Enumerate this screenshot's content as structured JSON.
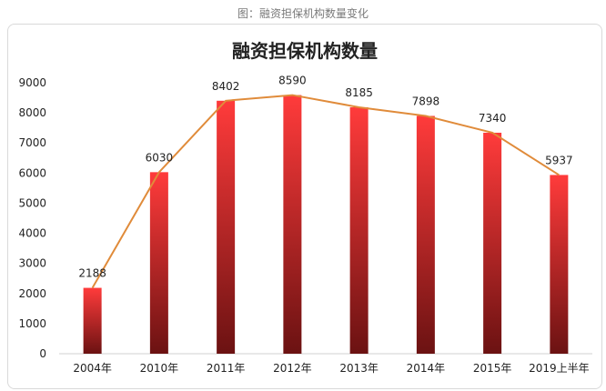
{
  "caption": "图：融资担保机构数量变化",
  "chart_data": {
    "type": "bar",
    "title": "融资担保机构数量",
    "xlabel": "",
    "ylabel": "",
    "categories": [
      "2004年",
      "2010年",
      "2011年",
      "2012年",
      "2013年",
      "2014年",
      "2015年",
      "2019上半年"
    ],
    "series": [
      {
        "values": [
          2188,
          6030,
          8402,
          8590,
          8185,
          7898,
          7340,
          5937
        ]
      }
    ],
    "overlay_line": true,
    "ylim": [
      0,
      9000
    ],
    "yticks": [
      0,
      1000,
      2000,
      3000,
      4000,
      5000,
      6000,
      7000,
      8000,
      9000
    ],
    "grid": false,
    "legend": "none",
    "colors": {
      "bar_top": "#ff3b3b",
      "bar_bottom": "#6b1212",
      "line": "#e08b3a",
      "axis": "#d0d0d0",
      "text": "#222222"
    }
  }
}
